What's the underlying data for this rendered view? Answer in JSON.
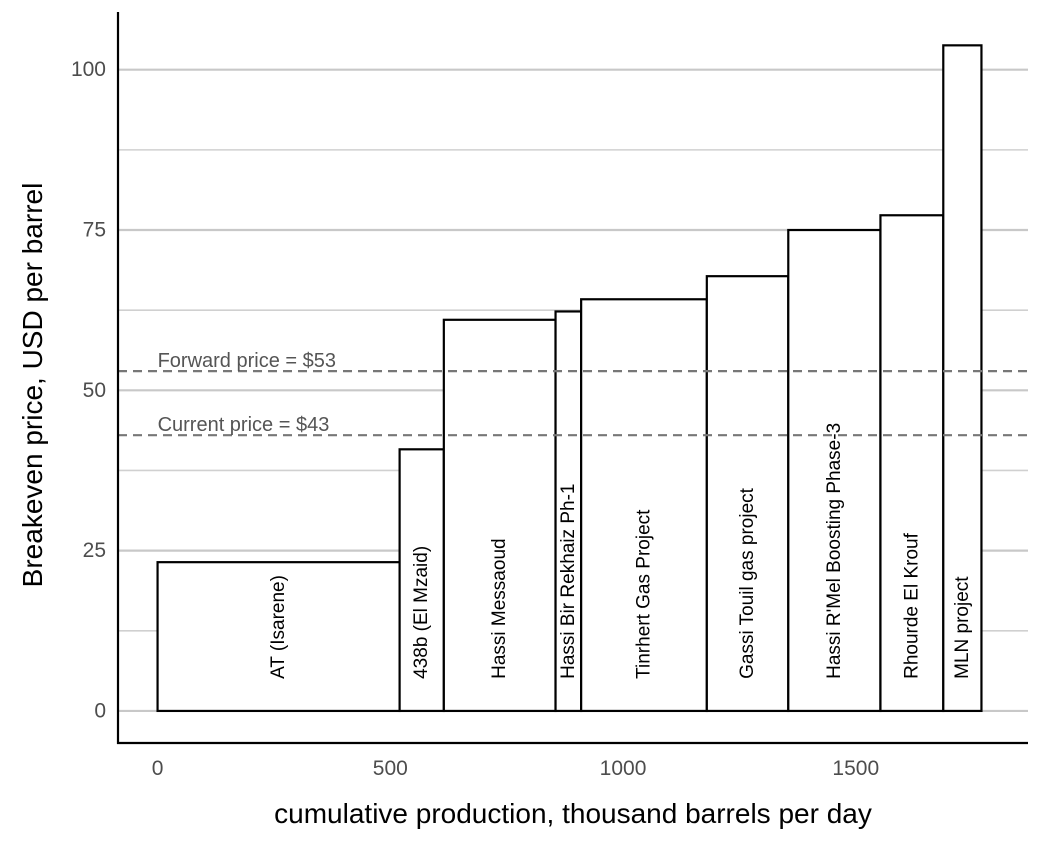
{
  "chart_data": {
    "type": "bar",
    "xlabel": "cumulative production, thousand barrels per day",
    "ylabel": "Breakeven price, USD per barrel",
    "xlim": [
      -85,
      1870
    ],
    "ylim": [
      -5,
      109
    ],
    "xticks": [
      0,
      500,
      1000,
      1500
    ],
    "yticks": [
      0,
      25,
      50,
      75,
      100
    ],
    "ygrid_minor": [
      12.5,
      37.5,
      62.5,
      87.5
    ],
    "grid": "horizontal",
    "bars": [
      {
        "name": "AT (Isarene)",
        "x_start": 0,
        "x_end": 520,
        "value": 23.2
      },
      {
        "name": "438b (El Mzaid)",
        "x_start": 520,
        "x_end": 615,
        "value": 40.8
      },
      {
        "name": "Hassi Messaoud",
        "x_start": 615,
        "x_end": 855,
        "value": 61.0
      },
      {
        "name": "Hassi Bir Rekhaiz Ph-1",
        "x_start": 855,
        "x_end": 910,
        "value": 62.3
      },
      {
        "name": "Tinrhert Gas Project",
        "x_start": 910,
        "x_end": 1180,
        "value": 64.2
      },
      {
        "name": "Gassi Touil gas project",
        "x_start": 1180,
        "x_end": 1355,
        "value": 67.8
      },
      {
        "name": "Hassi R'Mel Boosting Phase-3",
        "x_start": 1355,
        "x_end": 1553,
        "value": 75.0
      },
      {
        "name": "Rhourde El Krouf",
        "x_start": 1553,
        "x_end": 1688,
        "value": 77.3
      },
      {
        "name": "MLN project",
        "x_start": 1688,
        "x_end": 1770,
        "value": 103.8
      }
    ],
    "reference_lines": [
      {
        "label": "Forward price = $53",
        "value": 53
      },
      {
        "label": "Current price = $43",
        "value": 43
      }
    ]
  }
}
